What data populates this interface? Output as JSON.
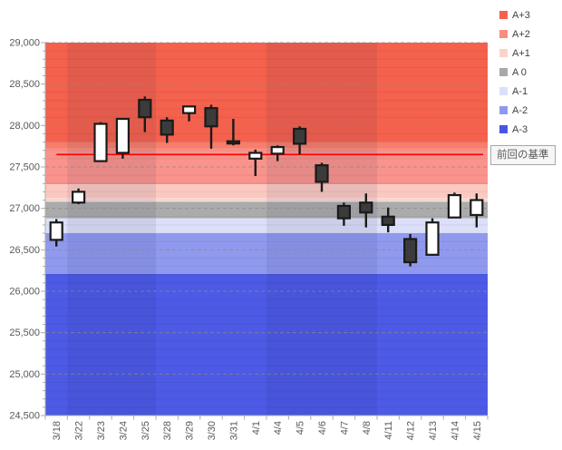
{
  "window": {
    "background": "#FFFFFF"
  },
  "legend": {
    "position": "top-right",
    "items": [
      {
        "label": "A+3",
        "color": "#F4614D"
      },
      {
        "label": "A+2",
        "color": "#F88E7E"
      },
      {
        "label": "A+1",
        "color": "#FBD3CB"
      },
      {
        "label": "A 0",
        "color": "#A8A8A8"
      },
      {
        "label": "A-1",
        "color": "#DCDFF9"
      },
      {
        "label": "A-2",
        "color": "#8E99ED"
      },
      {
        "label": "A-3",
        "color": "#4656E4"
      }
    ]
  },
  "baseline": {
    "label": "前回の基準",
    "value": 27650,
    "line_color": "#FF0000",
    "box_border": "#A6A6A6",
    "box_bg": "#F6F6F6",
    "text_color": "#595959"
  },
  "chart_data": {
    "type": "candlestick",
    "title": "",
    "xlabel": "",
    "ylabel": "",
    "ylim": [
      24500,
      29000
    ],
    "y_tick_step": 500,
    "y_tick_labels": [
      "29,000",
      "28,500",
      "28,000",
      "27,500",
      "27,000",
      "26,500",
      "26,000",
      "25,500",
      "25,000",
      "24,500"
    ],
    "grid": {
      "major_dashed_every": 500,
      "minor_line_every": 100,
      "major_color": "#8A8A8A",
      "minor_color": "rgba(0,0,0,0.06)"
    },
    "axis_color": "#ABABAB",
    "axis_text_color": "#595959",
    "bull_fill": "#FFFFFF",
    "bear_fill": "#3B3B3B",
    "outline_color": "#1A1A1A",
    "week_shade_color": "rgba(30,30,80,0.08)",
    "week_shade_index_ranges": [
      [
        1,
        4
      ],
      [
        10,
        14
      ]
    ],
    "bands": [
      {
        "label": "A+3",
        "from": 27800,
        "to": 29000,
        "color": "#F4614D"
      },
      {
        "label": "A+3/A+2 blend",
        "from": 27720,
        "to": 27800,
        "color": "#F77D6C"
      },
      {
        "label": "A+2",
        "from": 27290,
        "to": 27720,
        "color": "#F9938B"
      },
      {
        "label": "A+1",
        "from": 27120,
        "to": 27290,
        "color": "#FBC9C0"
      },
      {
        "label": "A+1 pale",
        "from": 27080,
        "to": 27120,
        "color": "#FDDED8"
      },
      {
        "label": "A 0",
        "from": 26880,
        "to": 27080,
        "color": "#ABABAB"
      },
      {
        "label": "A-1",
        "from": 26700,
        "to": 26880,
        "color": "#DCDFF8"
      },
      {
        "label": "A-2",
        "from": 26210,
        "to": 26700,
        "color": "#8F9AEE"
      },
      {
        "label": "A-3",
        "from": 24500,
        "to": 26210,
        "color": "#4D5AE5"
      }
    ],
    "candles": [
      {
        "date": "3/18",
        "open": 26620,
        "high": 26870,
        "low": 26540,
        "close": 26830
      },
      {
        "date": "3/22",
        "open": 27070,
        "high": 27240,
        "low": 27050,
        "close": 27200
      },
      {
        "date": "3/23",
        "open": 27570,
        "high": 28040,
        "low": 27560,
        "close": 28020
      },
      {
        "date": "3/24",
        "open": 27670,
        "high": 28090,
        "low": 27600,
        "close": 28080
      },
      {
        "date": "3/25",
        "open": 28310,
        "high": 28350,
        "low": 27920,
        "close": 28100
      },
      {
        "date": "3/28",
        "open": 28060,
        "high": 28100,
        "low": 27790,
        "close": 27890
      },
      {
        "date": "3/29",
        "open": 28150,
        "high": 28240,
        "low": 28050,
        "close": 28230
      },
      {
        "date": "3/30",
        "open": 28210,
        "high": 28250,
        "low": 27720,
        "close": 27990
      },
      {
        "date": "3/31",
        "open": 27810,
        "high": 28080,
        "low": 27760,
        "close": 27790
      },
      {
        "date": "4/1",
        "open": 27600,
        "high": 27710,
        "low": 27390,
        "close": 27670
      },
      {
        "date": "4/4",
        "open": 27660,
        "high": 27760,
        "low": 27570,
        "close": 27740
      },
      {
        "date": "4/5",
        "open": 27960,
        "high": 27990,
        "low": 27650,
        "close": 27780
      },
      {
        "date": "4/6",
        "open": 27520,
        "high": 27550,
        "low": 27200,
        "close": 27320
      },
      {
        "date": "4/7",
        "open": 27030,
        "high": 27070,
        "low": 26790,
        "close": 26880
      },
      {
        "date": "4/8",
        "open": 27070,
        "high": 27180,
        "low": 26770,
        "close": 26950
      },
      {
        "date": "4/11",
        "open": 26900,
        "high": 27010,
        "low": 26710,
        "close": 26800
      },
      {
        "date": "4/12",
        "open": 26630,
        "high": 26690,
        "low": 26300,
        "close": 26350
      },
      {
        "date": "4/13",
        "open": 26440,
        "high": 26880,
        "low": 26430,
        "close": 26830
      },
      {
        "date": "4/14",
        "open": 26890,
        "high": 27190,
        "low": 26890,
        "close": 27160
      },
      {
        "date": "4/15",
        "open": 26920,
        "high": 27180,
        "low": 26770,
        "close": 27100
      }
    ]
  }
}
